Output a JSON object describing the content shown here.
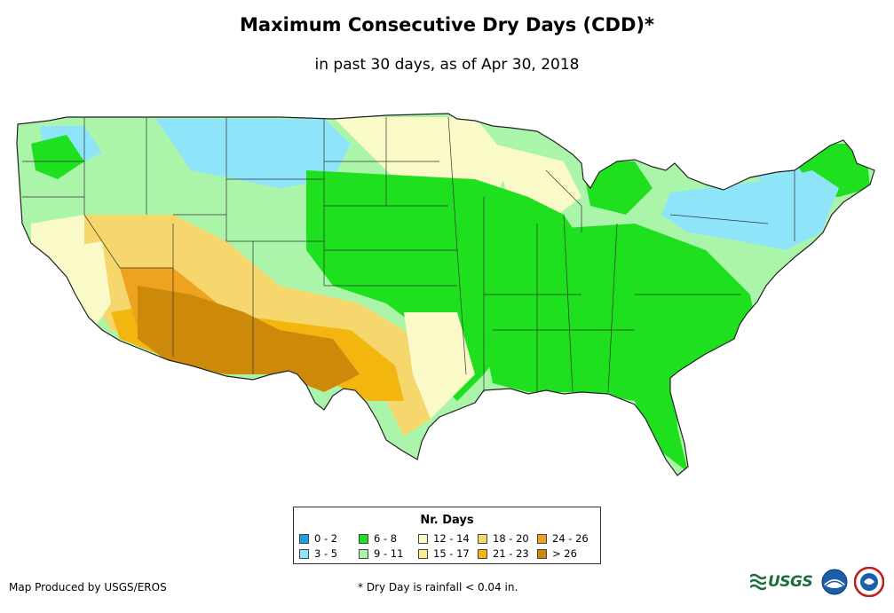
{
  "title": "Maximum Consecutive Dry Days (CDD)*",
  "subtitle": "in past 30 days, as of Apr 30, 2018",
  "legend": {
    "title": "Nr. Days",
    "items": [
      {
        "label": "0 - 2",
        "color": "#1aa0e6"
      },
      {
        "label": "6 - 8",
        "color": "#1ee01e"
      },
      {
        "label": "12 - 14",
        "color": "#fafac8"
      },
      {
        "label": "18 - 20",
        "color": "#f5d76e"
      },
      {
        "label": "24 - 26",
        "color": "#eea320"
      },
      {
        "label": "3 - 5",
        "color": "#8ee5fa"
      },
      {
        "label": "9 - 11",
        "color": "#aaf5aa"
      },
      {
        "label": "15 - 17",
        "color": "#f7ef8e"
      },
      {
        "label": "21 - 23",
        "color": "#f2b60f"
      },
      {
        "label": "> 26",
        "color": "#cd8a0a"
      }
    ]
  },
  "credit": "Map Produced by USGS/EROS",
  "footnote": "* Dry Day is rainfall < 0.04 in.",
  "logos": {
    "usgs_text": "USGS"
  }
}
